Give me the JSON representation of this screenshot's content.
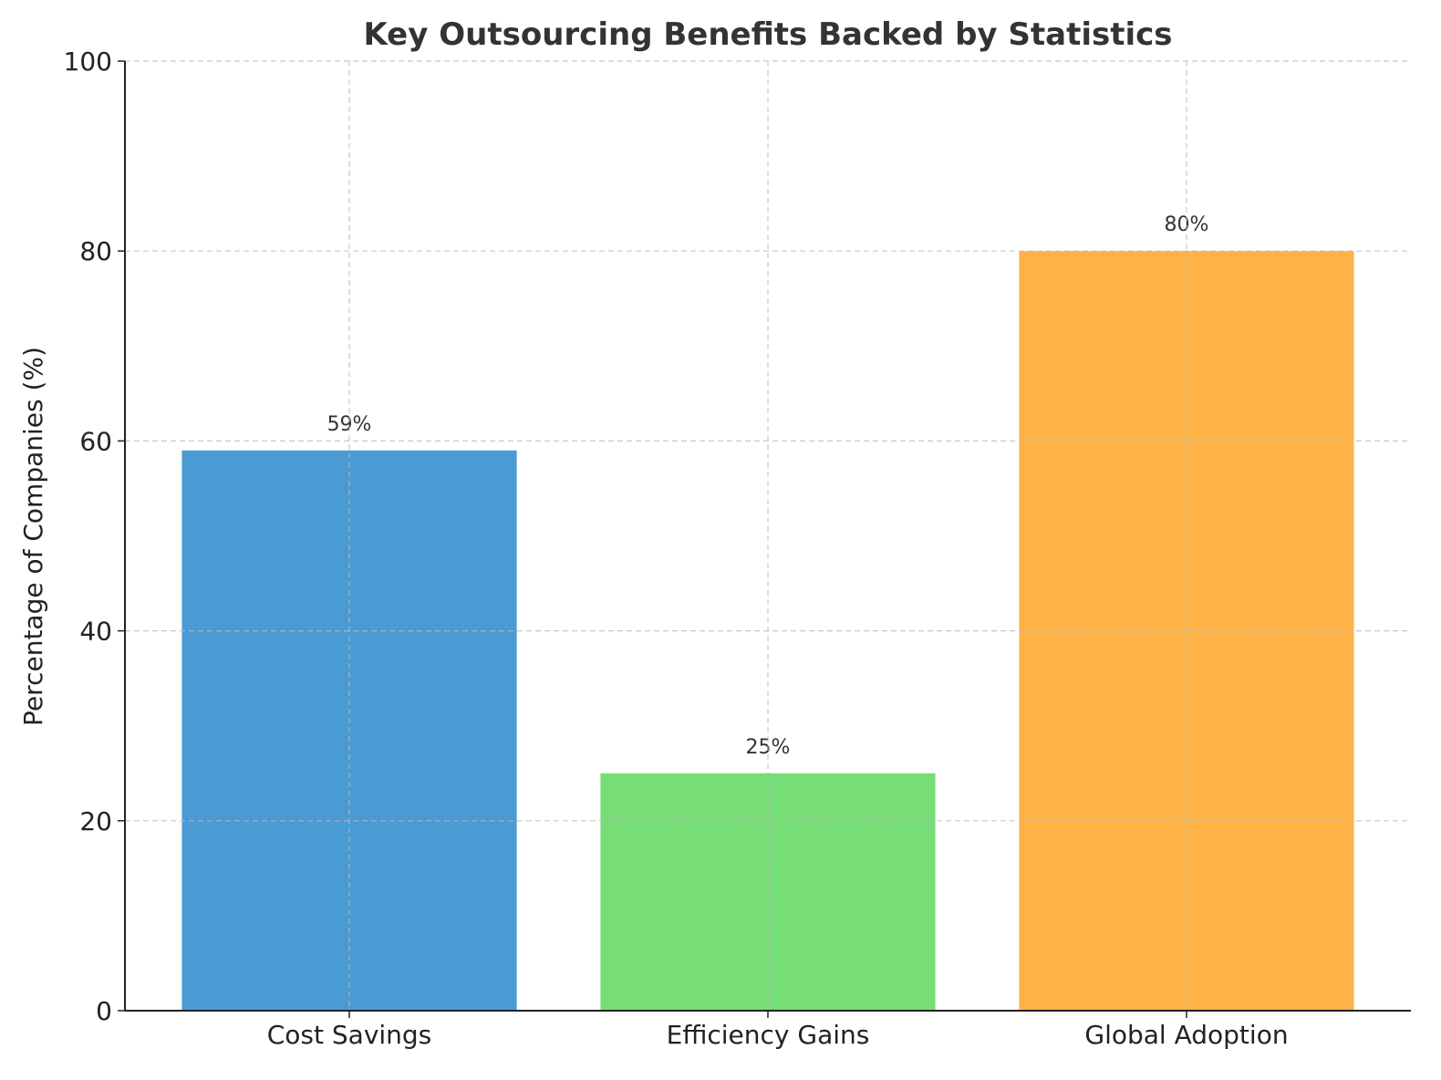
{
  "chart_data": {
    "type": "bar",
    "title": "Key Outsourcing Benefits Backed by Statistics",
    "xlabel": "",
    "ylabel": "Percentage of Companies (%)",
    "categories": [
      "Cost Savings",
      "Efficiency Gains",
      "Global Adoption"
    ],
    "values": [
      59,
      25,
      80
    ],
    "data_labels": [
      "59%",
      "25%",
      "80%"
    ],
    "colors": [
      "#4A9BD3",
      "#77DD77",
      "#FFB347"
    ],
    "ylim": [
      0,
      100
    ],
    "yticks": [
      0,
      20,
      40,
      60,
      80,
      100
    ],
    "grid": true,
    "grid_style": "dashed",
    "legend": "none"
  }
}
